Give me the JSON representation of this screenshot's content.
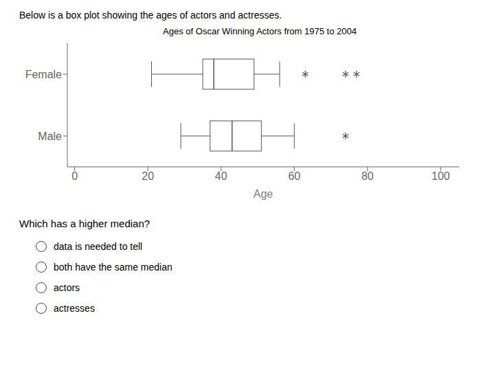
{
  "chart_data": {
    "type": "box",
    "title": "Ages of Oscar Winning Actors from 1975 to 2004",
    "xlabel": "Age",
    "header": "Below is a box plot showing the ages of actors and actresses.",
    "question": "Which has a higher median?",
    "choices": [
      "data is needed to tell",
      "both have the same median",
      "actors",
      "actresses"
    ],
    "categories": [
      "Female",
      "Male"
    ],
    "whisker_low": [
      21,
      29
    ],
    "q1": [
      35,
      37
    ],
    "median": [
      38,
      43
    ],
    "q3": [
      49,
      51
    ],
    "whisker_high": [
      56,
      60
    ],
    "outliers": [
      [
        63,
        74,
        77
      ],
      [
        74
      ]
    ],
    "color": "#555555",
    "marker": "asterisk",
    "orientation": "horizontal",
    "xlim": [
      -2,
      105
    ],
    "xticks": [
      0,
      20,
      40,
      60,
      80,
      100
    ],
    "grid": false
  }
}
